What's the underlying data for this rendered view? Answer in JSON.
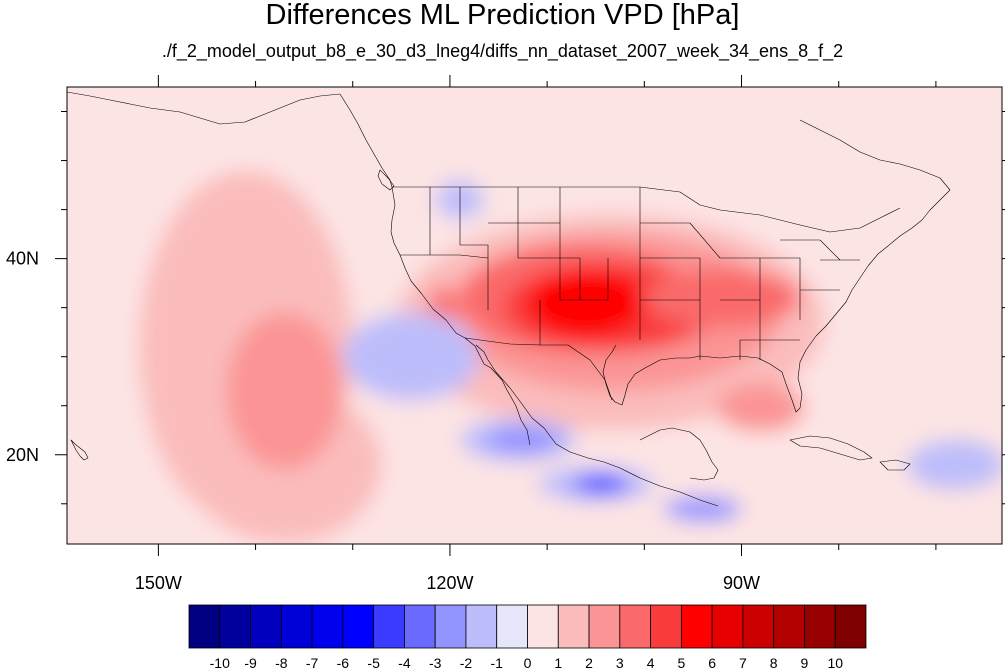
{
  "title": "Differences ML Prediction VPD [hPa]",
  "subtitle": "./f_2_model_output_b8_e_30_d3_lneg4/diffs_nn_dataset_2007_week_34_ens_8_f_2",
  "chart_data": {
    "type": "heatmap",
    "title": "Differences ML Prediction VPD [hPa]",
    "subtitle": "./f_2_model_output_b8_e_30_d3_lneg4/diffs_nn_dataset_2007_week_34_ens_8_f_2",
    "x_axis": {
      "range": [
        -159.4,
        -63.2
      ],
      "ticks": [
        {
          "value": -150,
          "label": "150W"
        },
        {
          "value": -120,
          "label": "120W"
        },
        {
          "value": -90,
          "label": "90W"
        }
      ],
      "minor_step": 10
    },
    "y_axis": {
      "range": [
        10.9,
        57.5
      ],
      "ticks": [
        {
          "value": 20,
          "label": "20N"
        },
        {
          "value": 40,
          "label": "40N"
        }
      ],
      "minor_step": 5
    },
    "colorbar": {
      "levels": [
        "-10",
        "-9",
        "-8",
        "-7",
        "-6",
        "-5",
        "-4",
        "-3",
        "-2",
        "-1",
        "0",
        "1",
        "2",
        "3",
        "4",
        "5",
        "6",
        "7",
        "8",
        "9",
        "10"
      ],
      "colors": [
        "#000080",
        "#00009e",
        "#0000be",
        "#0000d9",
        "#0000ee",
        "#0000ff",
        "#3b3bff",
        "#6a6aff",
        "#9494ff",
        "#bdbdfb",
        "#e6e6fb",
        "#fde4e4",
        "#fbbcbc",
        "#fb9494",
        "#fa6a6a",
        "#f93b3b",
        "#fe0000",
        "#e60000",
        "#cd0000",
        "#b30000",
        "#960000",
        "#7e0000"
      ]
    },
    "regions": [
      {
        "value": 0.5,
        "lon": -110.5,
        "lat": 34.0,
        "rlon": 48.0,
        "rlat": 23.0
      },
      {
        "value": 1.5,
        "lon": -141.0,
        "lat": 31.0,
        "rlon": 11.0,
        "rlat": 18.0
      },
      {
        "value": 1.5,
        "lon": -137.0,
        "lat": 19.0,
        "rlon": 10.0,
        "rlat": 8.0
      },
      {
        "value": 2.5,
        "lon": -137.0,
        "lat": 26.5,
        "rlon": 6.0,
        "rlat": 8.0
      },
      {
        "value": 1.5,
        "lon": -103.5,
        "lat": 33.5,
        "rlon": 22.0,
        "rlat": 11.0
      },
      {
        "value": 2.5,
        "lon": -103.0,
        "lat": 34.5,
        "rlon": 17.0,
        "rlat": 8.0
      },
      {
        "value": 3.5,
        "lon": -107.0,
        "lat": 36.0,
        "rlon": 12.0,
        "rlat": 5.5
      },
      {
        "value": 4.5,
        "lon": -103.5,
        "lat": 35.0,
        "rlon": 11.0,
        "rlat": 4.5
      },
      {
        "value": 5.5,
        "lon": -106.0,
        "lat": 35.5,
        "rlon": 6.0,
        "rlat": 3.5
      },
      {
        "value": 3.5,
        "lon": -92.0,
        "lat": 36.0,
        "rlon": 8.0,
        "rlat": 3.0
      },
      {
        "value": 3.5,
        "lon": -120.8,
        "lat": 35.2,
        "rlon": 1.3,
        "rlat": 2.0
      },
      {
        "value": 2.5,
        "lon": -88.0,
        "lat": 24.8,
        "rlon": 4.5,
        "rlat": 2.5
      },
      {
        "value": -1.5,
        "lon": -124.0,
        "lat": 30.0,
        "rlon": 7.0,
        "rlat": 4.5
      },
      {
        "value": -1.5,
        "lon": -113.0,
        "lat": 21.5,
        "rlon": 6.0,
        "rlat": 2.2
      },
      {
        "value": -2.5,
        "lon": -112.5,
        "lat": 21.5,
        "rlon": 3.8,
        "rlat": 1.4
      },
      {
        "value": -1.5,
        "lon": -119.0,
        "lat": 46.0,
        "rlon": 2.5,
        "rlat": 2.0
      },
      {
        "value": -1.5,
        "lon": -105.0,
        "lat": 17.0,
        "rlon": 6.0,
        "rlat": 1.8
      },
      {
        "value": -3.5,
        "lon": -104.5,
        "lat": 17.0,
        "rlon": 3.0,
        "rlat": 1.1
      },
      {
        "value": -5.0,
        "lon": -104.2,
        "lat": 17.1,
        "rlon": 1.6,
        "rlat": 0.6
      },
      {
        "value": -2.5,
        "lon": -94.0,
        "lat": 14.5,
        "rlon": 4.0,
        "rlat": 1.3
      },
      {
        "value": -1.5,
        "lon": -68.0,
        "lat": 19.0,
        "rlon": 5.0,
        "rlat": 2.5
      }
    ]
  },
  "colors": {
    "axis": "#000000",
    "coastline": "#000000",
    "background_field": "#fde4e4"
  }
}
